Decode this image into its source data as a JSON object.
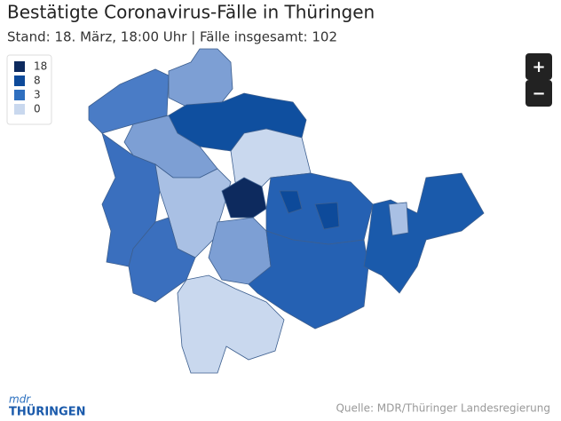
{
  "header": {
    "title": "Bestätigte Coronavirus-Fälle in Thüringen",
    "subtitle": "Stand: 18. März, 18:00 Uhr | Fälle insgesamt: 102"
  },
  "legend": [
    {
      "label": 18,
      "color": "#0d2a5e"
    },
    {
      "label": 8,
      "color": "#0d4a9a"
    },
    {
      "label": 3,
      "color": "#2f6fbf"
    },
    {
      "label": 0,
      "color": "#c9d8ee"
    }
  ],
  "zoom": {
    "in": "+",
    "out": "−"
  },
  "logo": {
    "top": "mdr",
    "bottom": "THÜRINGEN"
  },
  "source": "Quelle: MDR/Thüringer Landesregierung"
}
